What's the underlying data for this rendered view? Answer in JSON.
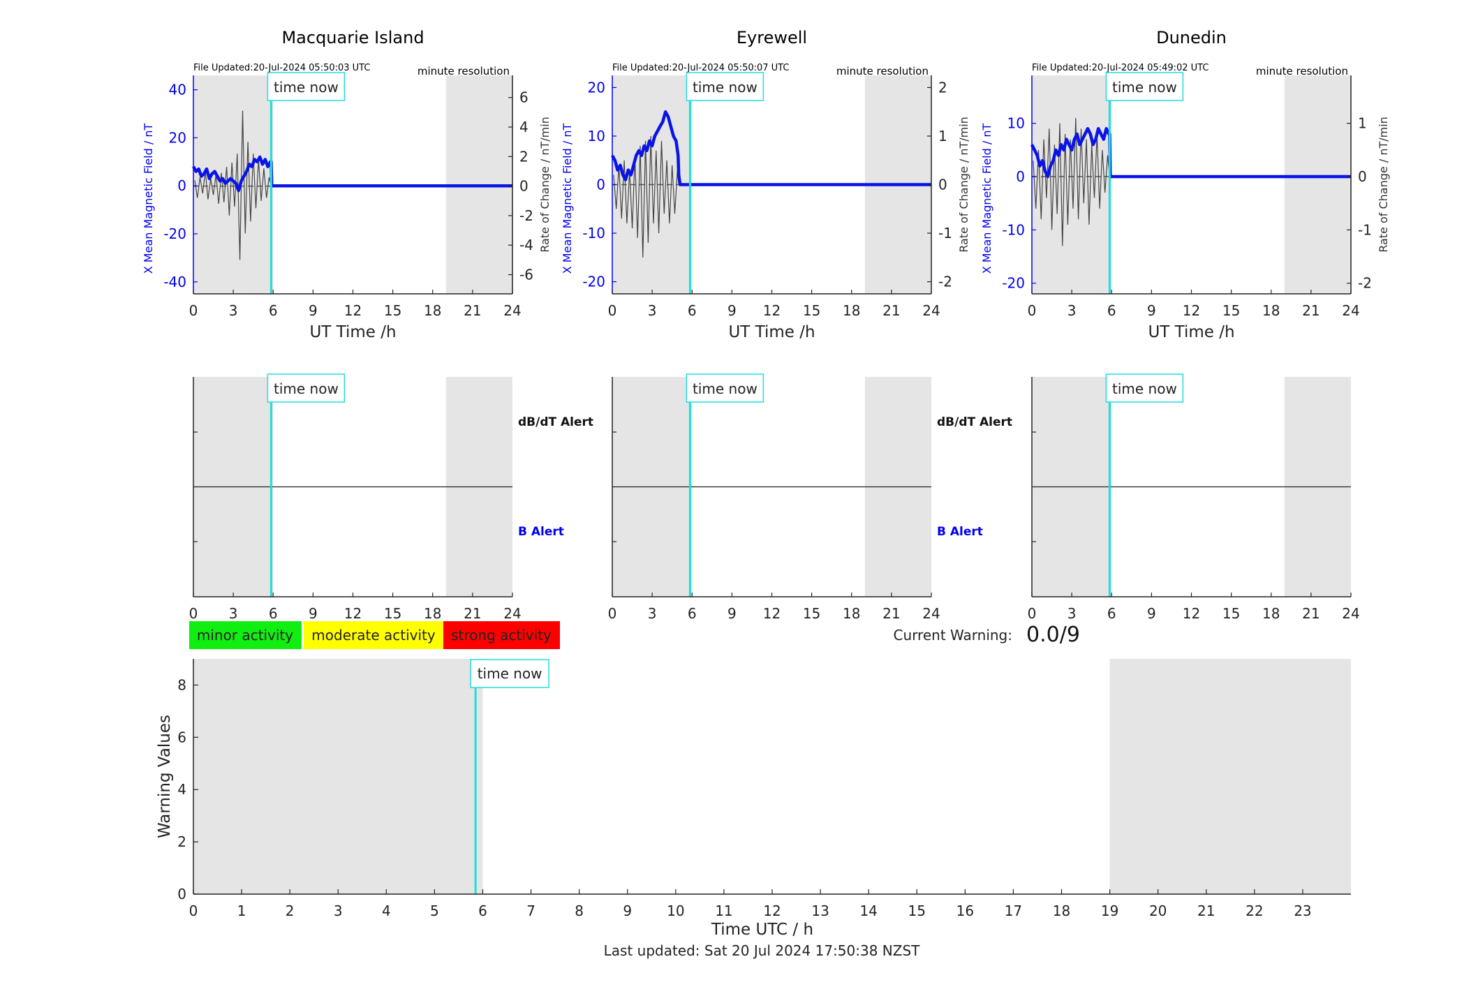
{
  "last_updated": "Last updated: Sat 20 Jul 2024 17:50:38 NZST",
  "time_now_label": "time now",
  "time_now_hour": 5.85,
  "night_shading": [
    [
      0,
      6
    ],
    [
      19,
      24
    ]
  ],
  "colors": {
    "field": "#0a14e6",
    "rate": "#444444",
    "time_now": "#22dddd",
    "shade": "#e5e5e5",
    "minor": "#11ee11",
    "moderate": "#ffff00",
    "strong": "#ff0000"
  },
  "stations": [
    {
      "title": "Macquarie Island",
      "file_updated": "File Updated:20-Jul-2024 05:50:03 UTC",
      "resolution": "minute resolution",
      "xlabel": "UT Time /h",
      "ylabel_left": "X Mean Magnetic Field / nT",
      "ylabel_right": "Rate of Change / nT/min",
      "left_ticks": [
        -40,
        -20,
        0,
        20,
        40
      ],
      "left_range": [
        -45,
        46
      ],
      "right_ticks": [
        -6,
        -4,
        -2,
        0,
        2,
        4,
        6
      ],
      "right_range": [
        -7.3,
        7.5
      ],
      "x_ticks": [
        0,
        3,
        6,
        9,
        12,
        15,
        18,
        21,
        24
      ],
      "field_series": {
        "name": "X Mean Magnetic Field",
        "x": [
          0,
          0.2,
          0.4,
          0.6,
          0.8,
          1.0,
          1.2,
          1.4,
          1.6,
          1.8,
          2.0,
          2.2,
          2.4,
          2.6,
          2.8,
          3.0,
          3.2,
          3.4,
          3.6,
          3.8,
          4.0,
          4.2,
          4.4,
          4.6,
          4.8,
          5.0,
          5.2,
          5.4,
          5.6,
          5.8,
          5.85,
          5.9,
          24
        ],
        "y": [
          8,
          6,
          7,
          4,
          5,
          7,
          3,
          5,
          6,
          4,
          2,
          3,
          1,
          2,
          3,
          2,
          1,
          -2,
          2,
          4,
          6,
          9,
          8,
          11,
          10,
          12,
          9,
          11,
          8,
          10,
          10,
          0,
          0
        ]
      },
      "rate_series": {
        "name": "Rate of Change",
        "x": [
          0.1,
          0.3,
          0.5,
          0.7,
          0.9,
          1.1,
          1.3,
          1.5,
          1.7,
          1.9,
          2.1,
          2.3,
          2.5,
          2.7,
          2.9,
          3.1,
          3.3,
          3.5,
          3.7,
          3.9,
          4.1,
          4.3,
          4.5,
          4.7,
          4.9,
          5.1,
          5.3,
          5.5,
          5.7,
          5.85
        ],
        "y": [
          0.4,
          -0.8,
          0.6,
          -0.5,
          1.0,
          -0.9,
          0.5,
          -0.6,
          0.8,
          -1.2,
          0.9,
          -1.1,
          1.3,
          -2.0,
          1.6,
          -1.4,
          2.2,
          -5.0,
          5.1,
          -3.2,
          3.0,
          -2.4,
          2.2,
          -1.5,
          1.8,
          -1.0,
          1.2,
          -0.8,
          0.6,
          0.0
        ]
      },
      "dbdt_alert_label": "dB/dT Alert",
      "b_alert_label": "B Alert"
    },
    {
      "title": "Eyrewell",
      "file_updated": "File Updated:20-Jul-2024 05:50:07 UTC",
      "resolution": "minute resolution",
      "xlabel": "UT Time /h",
      "ylabel_left": "X Mean Magnetic Field / nT",
      "ylabel_right": "Rate of Change / nT/min",
      "left_ticks": [
        -20,
        -10,
        0,
        10,
        20
      ],
      "left_range": [
        -22.5,
        22.5
      ],
      "right_ticks": [
        -2,
        -1,
        0,
        1,
        2
      ],
      "right_range": [
        -2.25,
        2.25
      ],
      "x_ticks": [
        0,
        3,
        6,
        9,
        12,
        15,
        18,
        21,
        24
      ],
      "field_series": {
        "name": "X Mean Magnetic Field",
        "x": [
          0,
          0.2,
          0.4,
          0.6,
          0.8,
          1.0,
          1.2,
          1.4,
          1.6,
          1.8,
          2.0,
          2.2,
          2.4,
          2.6,
          2.8,
          3.0,
          3.2,
          3.4,
          3.6,
          3.8,
          4.0,
          4.2,
          4.4,
          4.6,
          4.8,
          4.95,
          5.0,
          5.1,
          24
        ],
        "y": [
          6,
          5,
          3,
          4,
          2,
          1,
          3,
          2,
          4,
          6,
          7,
          6,
          8,
          7,
          9,
          8,
          10,
          11,
          12,
          13,
          15,
          14,
          12,
          10,
          9,
          6,
          2,
          0,
          0
        ]
      },
      "rate_series": {
        "name": "Rate of Change",
        "x": [
          0.1,
          0.3,
          0.5,
          0.7,
          0.9,
          1.1,
          1.3,
          1.5,
          1.7,
          1.9,
          2.1,
          2.3,
          2.5,
          2.7,
          2.9,
          3.1,
          3.3,
          3.5,
          3.7,
          3.9,
          4.1,
          4.3,
          4.5,
          4.7,
          4.9,
          5.0
        ],
        "y": [
          0.2,
          -0.5,
          0.4,
          -0.7,
          0.5,
          -0.8,
          0.3,
          -0.9,
          0.6,
          -1.1,
          0.8,
          -1.5,
          0.9,
          -1.2,
          1.0,
          -0.8,
          0.7,
          -1.0,
          0.9,
          -0.6,
          0.5,
          -0.8,
          0.4,
          -0.6,
          0.3,
          0.0
        ]
      },
      "dbdt_alert_label": "dB/dT Alert",
      "b_alert_label": "B Alert"
    },
    {
      "title": "Dunedin",
      "file_updated": "File Updated:20-Jul-2024 05:49:02 UTC",
      "resolution": "minute resolution",
      "xlabel": "UT Time /h",
      "ylabel_left": "X Mean Magnetic Field / nT",
      "ylabel_right": "Rate of Change / nT/min",
      "left_ticks": [
        -20,
        -10,
        0,
        10
      ],
      "left_range": [
        -22,
        19
      ],
      "right_ticks": [
        -2,
        -1,
        0,
        1
      ],
      "right_range": [
        -2.2,
        1.9
      ],
      "x_ticks": [
        0,
        3,
        6,
        9,
        12,
        15,
        18,
        21,
        24
      ],
      "field_series": {
        "name": "X Mean Magnetic Field",
        "x": [
          0,
          0.2,
          0.4,
          0.6,
          0.8,
          1.0,
          1.2,
          1.4,
          1.6,
          1.8,
          2.0,
          2.2,
          2.4,
          2.6,
          2.8,
          3.0,
          3.2,
          3.4,
          3.6,
          3.8,
          4.0,
          4.2,
          4.4,
          4.6,
          4.8,
          5.0,
          5.2,
          5.4,
          5.6,
          5.8,
          5.85,
          5.9,
          24
        ],
        "y": [
          6,
          5,
          4,
          2,
          3,
          1,
          0,
          2,
          3,
          5,
          4,
          6,
          5,
          7,
          6,
          5,
          7,
          8,
          6,
          7,
          8,
          9,
          8,
          6,
          7,
          9,
          8,
          7,
          9,
          8,
          8,
          0,
          0
        ]
      },
      "rate_series": {
        "name": "Rate of Change",
        "x": [
          0.1,
          0.3,
          0.5,
          0.7,
          0.9,
          1.1,
          1.3,
          1.5,
          1.7,
          1.9,
          2.1,
          2.3,
          2.5,
          2.7,
          2.9,
          3.1,
          3.3,
          3.5,
          3.7,
          3.9,
          4.1,
          4.3,
          4.5,
          4.7,
          4.9,
          5.1,
          5.3,
          5.5,
          5.7,
          5.85
        ],
        "y": [
          0.3,
          -0.6,
          0.5,
          -0.8,
          0.7,
          -0.4,
          0.9,
          -1.0,
          0.6,
          -0.7,
          1.0,
          -1.3,
          0.8,
          -0.9,
          0.7,
          -0.6,
          1.1,
          -0.8,
          0.9,
          -0.5,
          0.7,
          -0.9,
          0.6,
          -0.4,
          0.8,
          -0.6,
          0.5,
          -0.3,
          0.4,
          0.0
        ]
      },
      "dbdt_alert_label": "dB/dT Alert",
      "b_alert_label": "B Alert"
    }
  ],
  "legend": {
    "minor": "minor activity",
    "moderate": "moderate activity",
    "strong": "strong activity"
  },
  "current_warning_label": "Current Warning:",
  "current_warning_value": "0.0/9",
  "chart_data": {
    "type": "bar",
    "xlabel": "Time UTC / h",
    "ylabel": "Warning Values",
    "ylim": [
      0,
      9
    ],
    "xlim": [
      0,
      24
    ],
    "x_ticks": [
      0,
      1,
      2,
      3,
      4,
      5,
      6,
      7,
      8,
      9,
      10,
      11,
      12,
      13,
      14,
      15,
      16,
      17,
      18,
      19,
      20,
      21,
      22,
      23
    ],
    "y_ticks": [
      0,
      2,
      4,
      6,
      8
    ],
    "night_shading": [
      [
        0,
        6
      ],
      [
        19,
        24
      ]
    ],
    "time_now_hour": 5.85,
    "values": []
  }
}
